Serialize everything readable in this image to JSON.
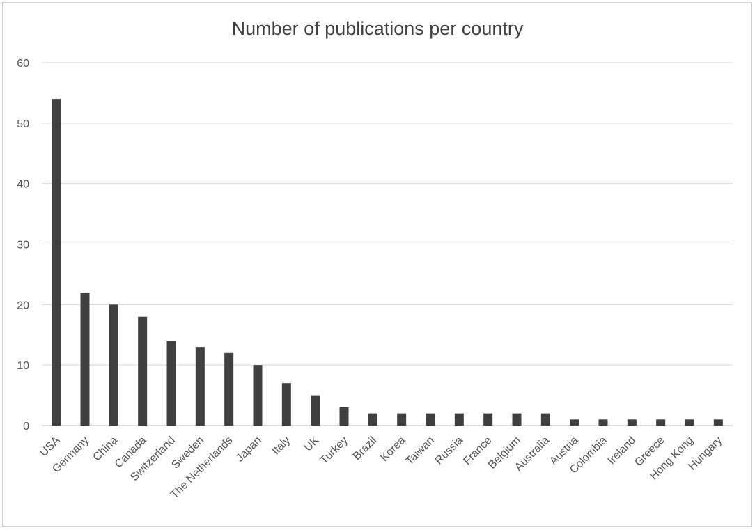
{
  "chart_data": {
    "type": "bar",
    "title": "Number of publications per country",
    "xlabel": "",
    "ylabel": "",
    "categories": [
      "USA",
      "Germany",
      "China",
      "Canada",
      "Switzerland",
      "Sweden",
      "The Netherlands",
      "Japan",
      "Italy",
      "UK",
      "Turkey",
      "Brazil",
      "Korea",
      "Taiwan",
      "Russia",
      "France",
      "Belgium",
      "Australia",
      "Austria",
      "Colombia",
      "Ireland",
      "Greece",
      "Hong Kong",
      "Hungary"
    ],
    "values": [
      54,
      22,
      20,
      18,
      14,
      13,
      12,
      10,
      7,
      5,
      3,
      2,
      2,
      2,
      2,
      2,
      2,
      2,
      1,
      1,
      1,
      1,
      1,
      1
    ],
    "ylim": [
      0,
      60
    ],
    "yticks": [
      0,
      10,
      20,
      30,
      40,
      50,
      60
    ],
    "grid": true,
    "legend": "none",
    "bar_color": "#404040",
    "grid_color": "#d9d9d9"
  }
}
